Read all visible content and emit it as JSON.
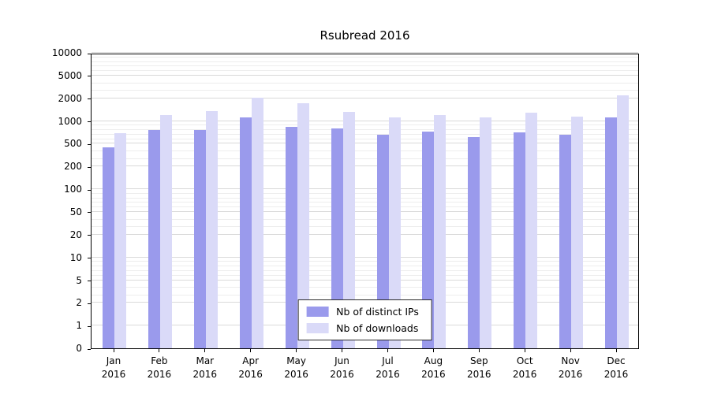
{
  "chart_data": {
    "type": "bar",
    "title": "Rsubread 2016",
    "categories": [
      "Jan",
      "Feb",
      "Mar",
      "Apr",
      "May",
      "Jun",
      "Jul",
      "Aug",
      "Sep",
      "Oct",
      "Nov",
      "Dec"
    ],
    "year_label": "2016",
    "series": [
      {
        "name": "Nb of distinct IPs",
        "color": "#9a9aec",
        "values": [
          450,
          800,
          800,
          1150,
          870,
          830,
          700,
          760,
          650,
          750,
          700,
          1150
        ]
      },
      {
        "name": "Nb of downloads",
        "color": "#dadaf8",
        "values": [
          730,
          1250,
          1450,
          2050,
          1800,
          1400,
          1150,
          1250,
          1150,
          1350,
          1200,
          2400
        ]
      }
    ],
    "yticks": [
      0,
      1,
      2,
      5,
      10,
      20,
      50,
      100,
      200,
      500,
      1000,
      2000,
      5000,
      10000
    ],
    "minor_gridlines": [
      3,
      4,
      6,
      7,
      8,
      9,
      30,
      40,
      60,
      70,
      80,
      90,
      300,
      400,
      600,
      700,
      800,
      900,
      3000,
      4000,
      6000,
      7000,
      8000,
      9000
    ],
    "xlabel": "",
    "ylabel": "",
    "grid": true,
    "legend_position": "bottom-center"
  },
  "colors": {
    "major_grid": "#d9d9d9",
    "minor_grid": "#ededed",
    "axis": "#000000",
    "background": "#ffffff"
  }
}
